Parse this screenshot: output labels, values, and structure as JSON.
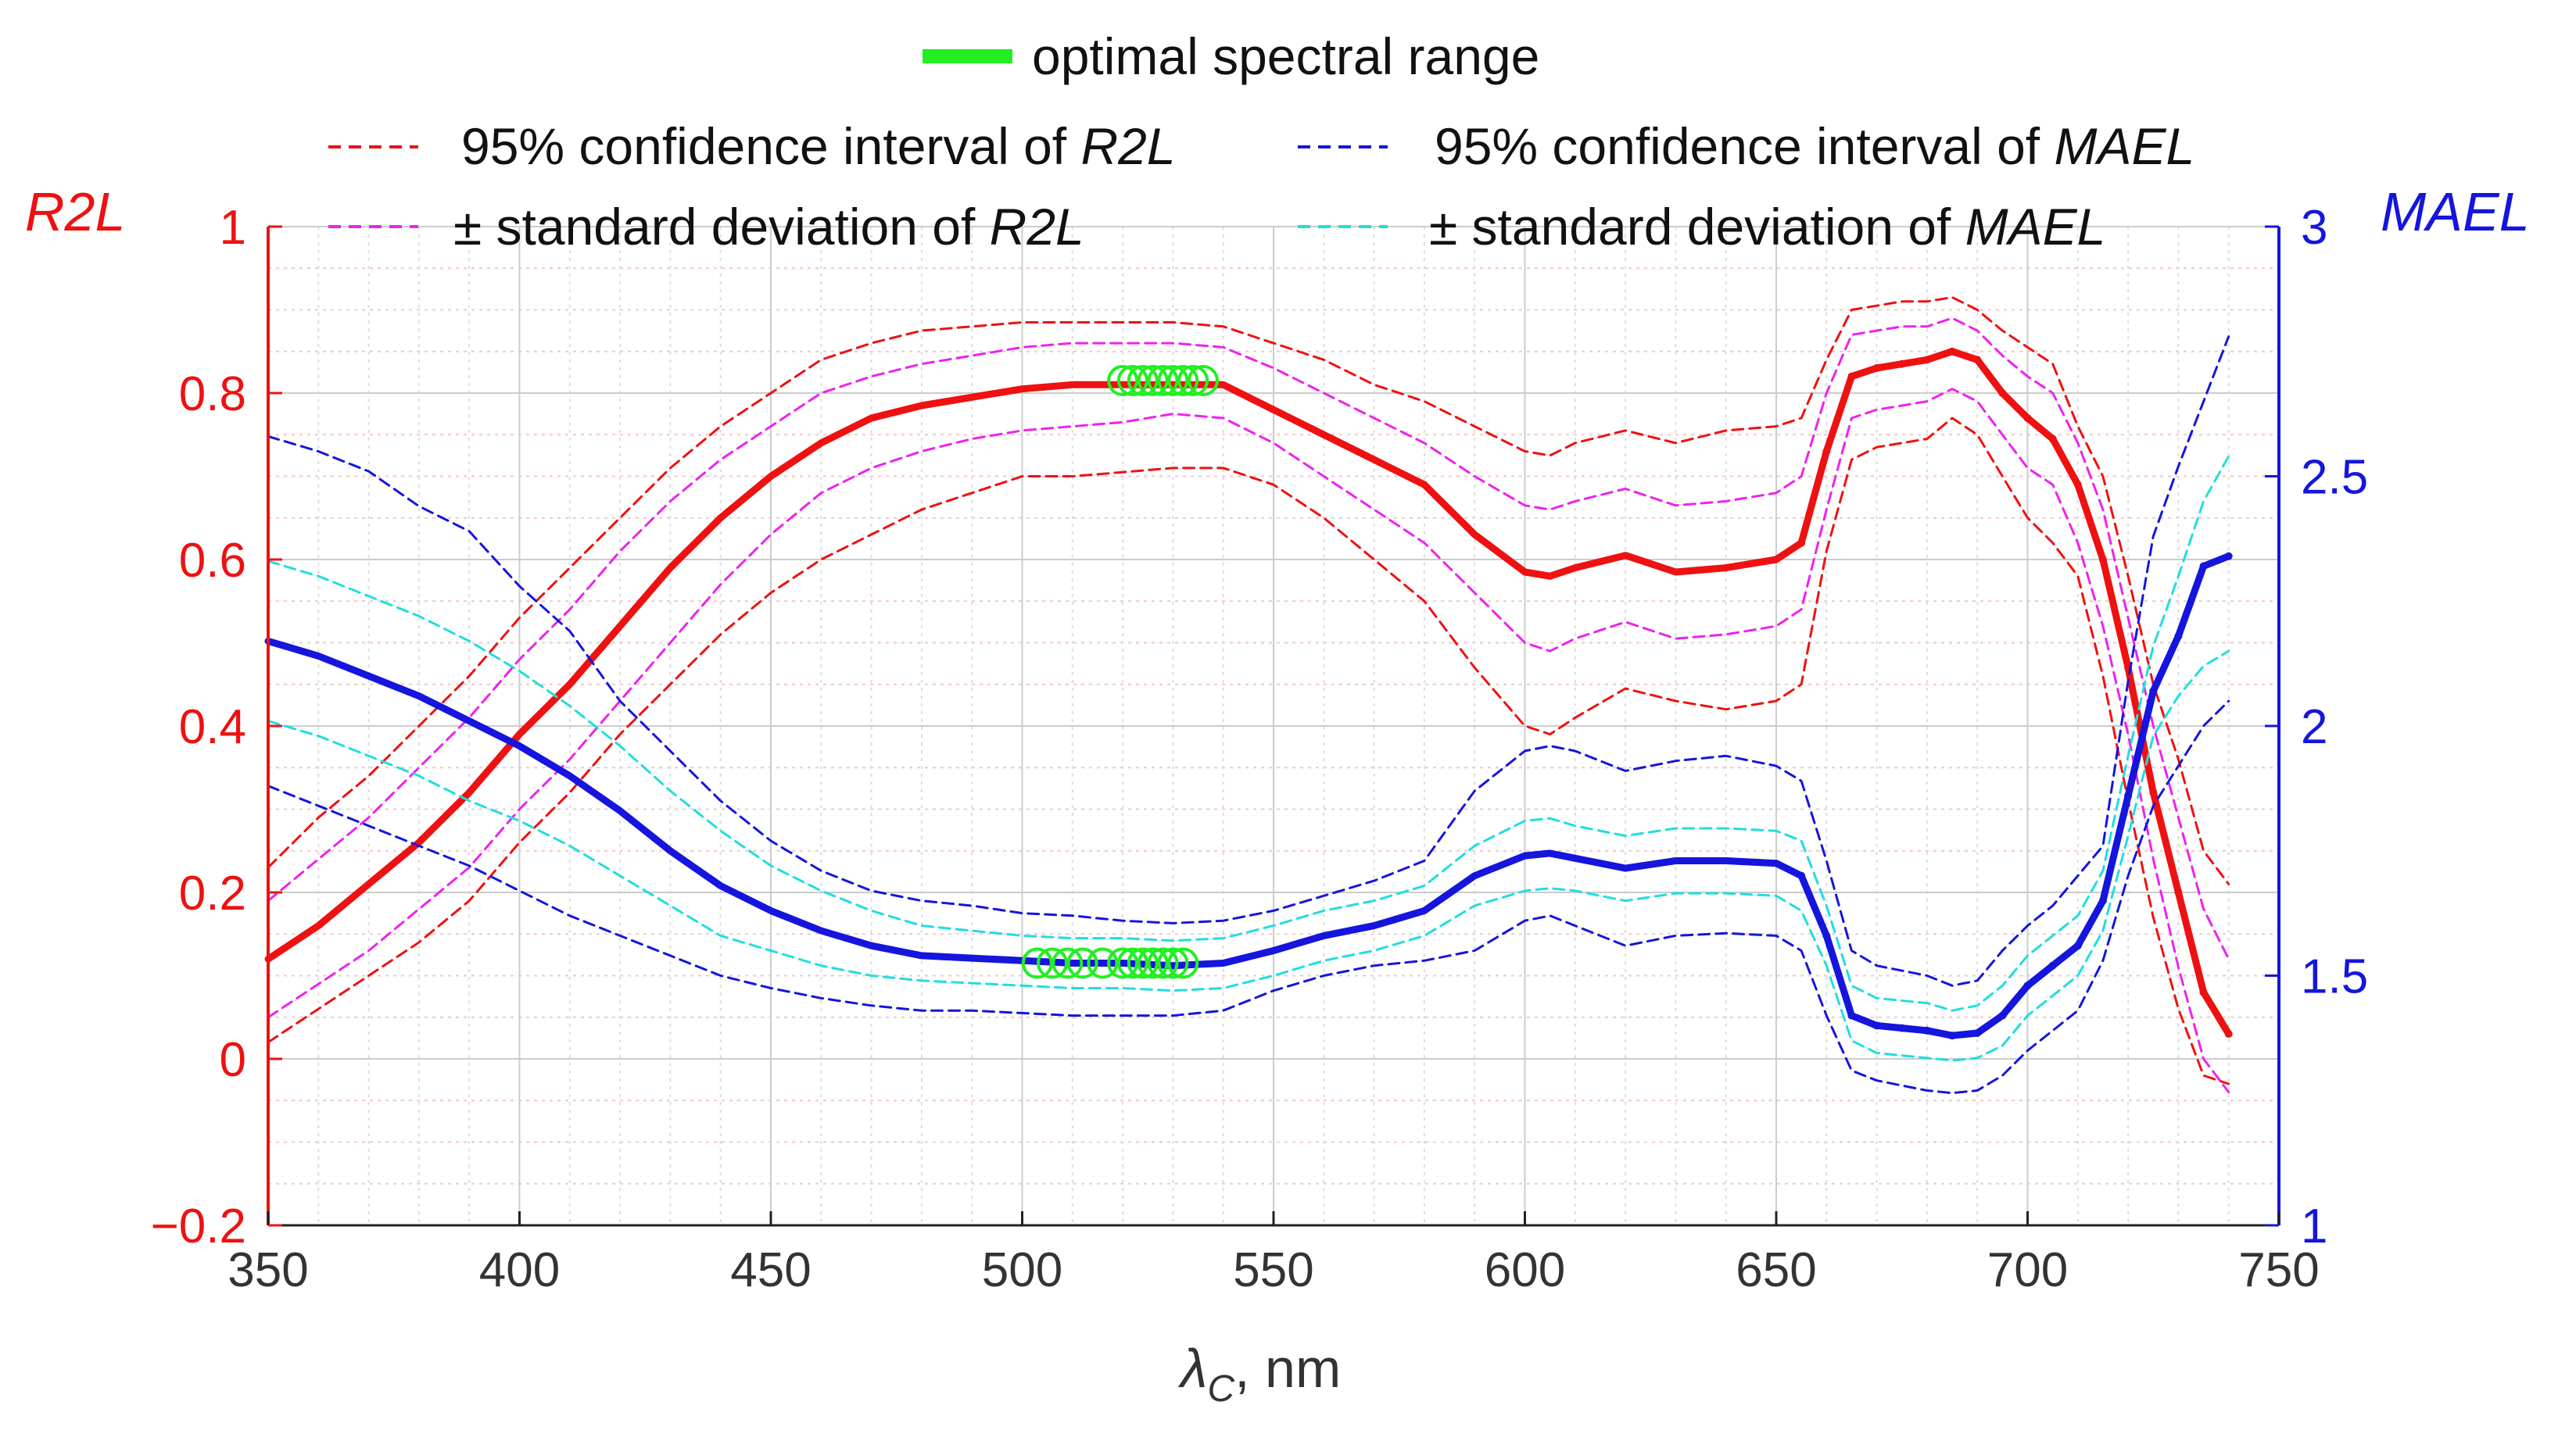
{
  "chart_data": {
    "type": "line",
    "title": "",
    "xlabel": "λ",
    "xlabel_sub": "C",
    "xlabel_unit": ", nm",
    "ylabel_left": "R2L",
    "ylabel_right": "MAEL",
    "xlim": [
      350,
      750
    ],
    "ylim_left": [
      -0.2,
      1
    ],
    "ylim_right": [
      1,
      3
    ],
    "x_ticks": [
      "350",
      "400",
      "450",
      "500",
      "550",
      "600",
      "650",
      "700",
      "750"
    ],
    "y_left_ticks": [
      "−0.2",
      "0",
      "0.2",
      "0.4",
      "0.6",
      "0.8",
      "1"
    ],
    "y_right_ticks": [
      "1",
      "1.5",
      "2",
      "2.5",
      "3"
    ],
    "grid": true,
    "colors": {
      "r2l": "#ee1111",
      "mael": "#1515dd",
      "r2l_sd": "#ee22ee",
      "mael_sd": "#22dddd",
      "optimal": "#22ee22",
      "grid_major": "#dddddd",
      "grid_minor": "#f0c8c8"
    },
    "legend": [
      {
        "key": "optimal",
        "label_parts": [
          {
            "text": "optimal spectral range",
            "italic": false
          }
        ]
      },
      {
        "key": "r2l_ci",
        "label_parts": [
          {
            "text": "95% confidence interval of ",
            "italic": false
          },
          {
            "text": "R2L",
            "italic": true
          }
        ]
      },
      {
        "key": "mael_ci",
        "label_parts": [
          {
            "text": "95% confidence interval of ",
            "italic": false
          },
          {
            "text": "MAEL",
            "italic": true
          }
        ]
      },
      {
        "key": "r2l_sd",
        "label_parts": [
          {
            "text": "± standard deviation of ",
            "italic": false
          },
          {
            "text": "R2L",
            "italic": true
          }
        ]
      },
      {
        "key": "mael_sd",
        "label_parts": [
          {
            "text": "± standard deviation of ",
            "italic": false
          },
          {
            "text": "MAEL",
            "italic": true
          }
        ]
      }
    ],
    "x": [
      350,
      360,
      370,
      380,
      390,
      400,
      410,
      420,
      430,
      440,
      450,
      460,
      470,
      480,
      490,
      500,
      510,
      520,
      530,
      540,
      550,
      560,
      570,
      580,
      590,
      600,
      605,
      610,
      620,
      630,
      640,
      650,
      655,
      660,
      665,
      670,
      675,
      680,
      685,
      690,
      695,
      700,
      705,
      710,
      715,
      720,
      725,
      730,
      735,
      740
    ],
    "series": [
      {
        "name": "R2L",
        "axis": "left",
        "color_key": "r2l",
        "dash": false,
        "width": 9,
        "values": [
          0.12,
          0.16,
          0.21,
          0.26,
          0.32,
          0.39,
          0.45,
          0.52,
          0.59,
          0.65,
          0.7,
          0.74,
          0.77,
          0.785,
          0.795,
          0.805,
          0.81,
          0.81,
          0.81,
          0.81,
          0.78,
          0.75,
          0.72,
          0.69,
          0.63,
          0.585,
          0.58,
          0.59,
          0.605,
          0.585,
          0.59,
          0.6,
          0.62,
          0.73,
          0.82,
          0.83,
          0.835,
          0.84,
          0.85,
          0.84,
          0.8,
          0.77,
          0.745,
          0.69,
          0.6,
          0.47,
          0.32,
          0.2,
          0.08,
          0.03
        ]
      },
      {
        "name": "R2L CI upper",
        "axis": "left",
        "color_key": "r2l",
        "dash": true,
        "width": 3,
        "values": [
          0.23,
          0.29,
          0.34,
          0.4,
          0.46,
          0.53,
          0.59,
          0.65,
          0.71,
          0.76,
          0.8,
          0.84,
          0.86,
          0.875,
          0.88,
          0.885,
          0.885,
          0.885,
          0.885,
          0.88,
          0.86,
          0.84,
          0.81,
          0.79,
          0.76,
          0.73,
          0.725,
          0.74,
          0.755,
          0.74,
          0.755,
          0.76,
          0.77,
          0.84,
          0.9,
          0.905,
          0.91,
          0.91,
          0.915,
          0.9,
          0.875,
          0.855,
          0.835,
          0.76,
          0.7,
          0.58,
          0.45,
          0.36,
          0.25,
          0.21
        ]
      },
      {
        "name": "R2L CI lower",
        "axis": "left",
        "color_key": "r2l",
        "dash": true,
        "width": 3,
        "values": [
          0.02,
          0.06,
          0.1,
          0.14,
          0.19,
          0.26,
          0.32,
          0.39,
          0.45,
          0.51,
          0.56,
          0.6,
          0.63,
          0.66,
          0.68,
          0.7,
          0.7,
          0.705,
          0.71,
          0.71,
          0.69,
          0.65,
          0.6,
          0.55,
          0.47,
          0.4,
          0.39,
          0.41,
          0.445,
          0.43,
          0.42,
          0.43,
          0.45,
          0.61,
          0.72,
          0.735,
          0.74,
          0.745,
          0.77,
          0.75,
          0.7,
          0.65,
          0.62,
          0.58,
          0.46,
          0.31,
          0.17,
          0.06,
          -0.02,
          -0.03
        ]
      },
      {
        "name": "R2L SD upper",
        "axis": "left",
        "color_key": "r2l_sd",
        "dash": true,
        "width": 3,
        "values": [
          0.19,
          0.24,
          0.29,
          0.35,
          0.41,
          0.48,
          0.54,
          0.61,
          0.67,
          0.72,
          0.76,
          0.8,
          0.82,
          0.835,
          0.845,
          0.855,
          0.86,
          0.86,
          0.86,
          0.855,
          0.83,
          0.8,
          0.77,
          0.74,
          0.7,
          0.665,
          0.66,
          0.67,
          0.685,
          0.665,
          0.67,
          0.68,
          0.7,
          0.8,
          0.87,
          0.875,
          0.88,
          0.88,
          0.89,
          0.875,
          0.845,
          0.82,
          0.8,
          0.74,
          0.66,
          0.53,
          0.4,
          0.29,
          0.18,
          0.12
        ]
      },
      {
        "name": "R2L SD lower",
        "axis": "left",
        "color_key": "r2l_sd",
        "dash": true,
        "width": 3,
        "values": [
          0.05,
          0.09,
          0.13,
          0.18,
          0.23,
          0.3,
          0.36,
          0.43,
          0.5,
          0.57,
          0.63,
          0.68,
          0.71,
          0.73,
          0.745,
          0.755,
          0.76,
          0.765,
          0.775,
          0.77,
          0.74,
          0.7,
          0.66,
          0.62,
          0.56,
          0.5,
          0.49,
          0.505,
          0.525,
          0.505,
          0.51,
          0.52,
          0.54,
          0.66,
          0.77,
          0.78,
          0.785,
          0.79,
          0.805,
          0.79,
          0.75,
          0.71,
          0.69,
          0.62,
          0.52,
          0.39,
          0.24,
          0.11,
          0.0,
          -0.04
        ]
      },
      {
        "name": "MAEL",
        "axis": "right",
        "color_key": "mael",
        "dash": false,
        "width": 9,
        "values": [
          2.17,
          2.14,
          2.1,
          2.06,
          2.01,
          1.96,
          1.9,
          1.83,
          1.75,
          1.68,
          1.63,
          1.59,
          1.56,
          1.54,
          1.535,
          1.53,
          1.525,
          1.525,
          1.52,
          1.525,
          1.55,
          1.58,
          1.6,
          1.63,
          1.7,
          1.74,
          1.745,
          1.735,
          1.715,
          1.73,
          1.73,
          1.725,
          1.7,
          1.58,
          1.42,
          1.4,
          1.395,
          1.39,
          1.38,
          1.385,
          1.42,
          1.48,
          1.52,
          1.56,
          1.65,
          1.86,
          2.07,
          2.18,
          2.32,
          2.34
        ]
      },
      {
        "name": "MAEL CI upper",
        "axis": "right",
        "color_key": "mael",
        "dash": true,
        "width": 3,
        "values": [
          2.58,
          2.55,
          2.51,
          2.44,
          2.39,
          2.28,
          2.19,
          2.05,
          1.95,
          1.85,
          1.77,
          1.71,
          1.67,
          1.65,
          1.64,
          1.625,
          1.62,
          1.61,
          1.605,
          1.61,
          1.63,
          1.66,
          1.69,
          1.73,
          1.87,
          1.95,
          1.96,
          1.95,
          1.91,
          1.93,
          1.94,
          1.92,
          1.89,
          1.73,
          1.55,
          1.52,
          1.51,
          1.5,
          1.48,
          1.49,
          1.55,
          1.6,
          1.64,
          1.7,
          1.76,
          2.09,
          2.38,
          2.52,
          2.65,
          2.78
        ]
      },
      {
        "name": "MAEL CI lower",
        "axis": "right",
        "color_key": "mael",
        "dash": true,
        "width": 3,
        "values": [
          1.88,
          1.84,
          1.8,
          1.76,
          1.72,
          1.67,
          1.62,
          1.58,
          1.54,
          1.5,
          1.475,
          1.455,
          1.44,
          1.43,
          1.43,
          1.425,
          1.42,
          1.42,
          1.42,
          1.43,
          1.47,
          1.5,
          1.52,
          1.53,
          1.55,
          1.61,
          1.62,
          1.6,
          1.56,
          1.58,
          1.585,
          1.58,
          1.55,
          1.42,
          1.31,
          1.29,
          1.28,
          1.27,
          1.265,
          1.27,
          1.3,
          1.35,
          1.39,
          1.43,
          1.53,
          1.7,
          1.84,
          1.92,
          2.0,
          2.05
        ]
      },
      {
        "name": "MAEL SD upper",
        "axis": "right",
        "color_key": "mael_sd",
        "dash": true,
        "width": 3,
        "values": [
          2.33,
          2.3,
          2.26,
          2.22,
          2.17,
          2.11,
          2.04,
          1.96,
          1.87,
          1.79,
          1.72,
          1.67,
          1.63,
          1.6,
          1.59,
          1.58,
          1.575,
          1.575,
          1.57,
          1.575,
          1.6,
          1.63,
          1.65,
          1.68,
          1.76,
          1.81,
          1.815,
          1.8,
          1.78,
          1.795,
          1.795,
          1.79,
          1.77,
          1.64,
          1.48,
          1.455,
          1.45,
          1.445,
          1.43,
          1.44,
          1.48,
          1.54,
          1.58,
          1.62,
          1.71,
          1.94,
          2.16,
          2.3,
          2.45,
          2.54
        ]
      },
      {
        "name": "MAEL SD lower",
        "axis": "right",
        "color_key": "mael_sd",
        "dash": true,
        "width": 3,
        "values": [
          2.01,
          1.98,
          1.94,
          1.9,
          1.85,
          1.81,
          1.76,
          1.7,
          1.64,
          1.58,
          1.55,
          1.52,
          1.5,
          1.49,
          1.485,
          1.48,
          1.475,
          1.475,
          1.47,
          1.475,
          1.5,
          1.53,
          1.55,
          1.58,
          1.64,
          1.67,
          1.675,
          1.67,
          1.65,
          1.665,
          1.665,
          1.66,
          1.63,
          1.52,
          1.37,
          1.345,
          1.34,
          1.335,
          1.33,
          1.335,
          1.36,
          1.42,
          1.46,
          1.5,
          1.59,
          1.78,
          1.98,
          2.06,
          2.12,
          2.15
        ]
      }
    ],
    "optimal_range": {
      "r2l_x": [
        520,
        522,
        524,
        526,
        528,
        530,
        532,
        534,
        536
      ],
      "r2l_y": [
        0.815,
        0.815,
        0.815,
        0.815,
        0.815,
        0.815,
        0.815,
        0.815,
        0.815
      ],
      "mael_x": [
        503,
        506,
        509,
        512,
        516,
        520,
        522,
        524,
        526,
        528,
        530,
        532
      ],
      "mael_y": [
        1.525,
        1.525,
        1.525,
        1.525,
        1.525,
        1.525,
        1.525,
        1.525,
        1.525,
        1.525,
        1.525,
        1.525
      ]
    }
  }
}
